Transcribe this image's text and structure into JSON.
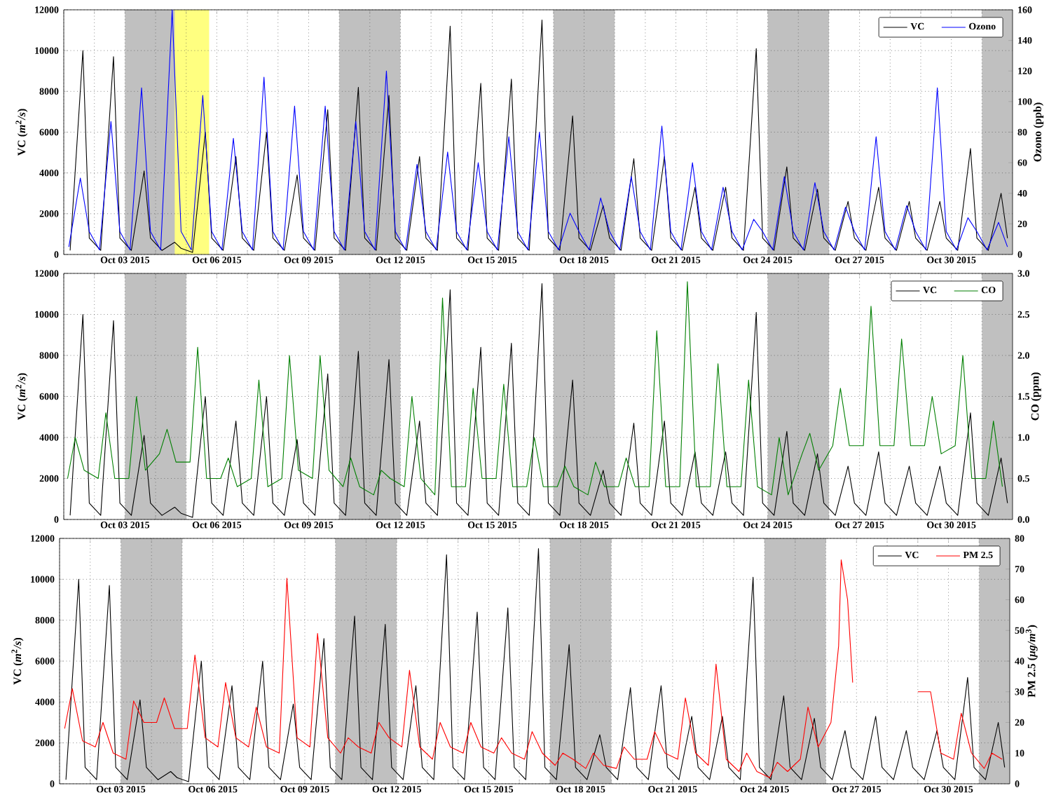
{
  "chart_data": [
    {
      "type": "line",
      "ylabel": "VC (*m*$^{2}$*/s*)",
      "y2label": "Ozono (ppb)",
      "grid": true,
      "legend": "top right",
      "line_style": "solid",
      "xlim": [
        "2015-10-01",
        "2015-11-01"
      ],
      "xticks": [
        {
          "value": "2015-10-01",
          "label": null
        },
        {
          "value": "2015-10-02",
          "label": null
        },
        {
          "value": "2015-10-03",
          "label": "Oct 03 2015"
        },
        {
          "value": "2015-10-04",
          "label": null
        },
        {
          "value": "2015-10-05",
          "label": null
        },
        {
          "value": "2015-10-06",
          "label": "Oct 06 2015"
        },
        {
          "value": "2015-10-07",
          "label": null
        },
        {
          "value": "2015-10-08",
          "label": null
        },
        {
          "value": "2015-10-09",
          "label": "Oct 09 2015"
        },
        {
          "value": "2015-10-10",
          "label": null
        },
        {
          "value": "2015-10-11",
          "label": null
        },
        {
          "value": "2015-10-12",
          "label": "Oct 12 2015"
        },
        {
          "value": "2015-10-13",
          "label": null
        },
        {
          "value": "2015-10-14",
          "label": null
        },
        {
          "value": "2015-10-15",
          "label": "Oct 15 2015"
        },
        {
          "value": "2015-10-16",
          "label": null
        },
        {
          "value": "2015-10-17",
          "label": null
        },
        {
          "value": "2015-10-18",
          "label": "Oct 18 2015"
        },
        {
          "value": "2015-10-19",
          "label": null
        },
        {
          "value": "2015-10-20",
          "label": null
        },
        {
          "value": "2015-10-21",
          "label": "Oct 21 2015"
        },
        {
          "value": "2015-10-22",
          "label": null
        },
        {
          "value": "2015-10-23",
          "label": null
        },
        {
          "value": "2015-10-24",
          "label": "Oct 24 2015"
        },
        {
          "value": "2015-10-25",
          "label": null
        },
        {
          "value": "2015-10-26",
          "label": null
        },
        {
          "value": "2015-10-27",
          "label": "Oct 27 2015"
        },
        {
          "value": "2015-10-28",
          "label": null
        },
        {
          "value": "2015-10-29",
          "label": null
        },
        {
          "value": "2015-10-30",
          "label": "Oct 30 2015"
        },
        {
          "value": "2015-10-31",
          "label": null
        }
      ],
      "ylim": [
        0,
        12000
      ],
      "yticks": [
        0,
        2000,
        4000,
        6000,
        8000,
        10000,
        12000
      ],
      "y2lim": [
        0,
        160
      ],
      "y2ticks": [
        0,
        20,
        40,
        60,
        80,
        100,
        120,
        140,
        160
      ],
      "bands": [
        {
          "axis": "x",
          "from": "2015-10-03",
          "to": "2015-10-05",
          "color": "#c0c0c0"
        },
        {
          "axis": "x",
          "from": "2015-10-10",
          "to": "2015-10-12",
          "color": "#c0c0c0"
        },
        {
          "axis": "x",
          "from": "2015-10-17",
          "to": "2015-10-19",
          "color": "#c0c0c0"
        },
        {
          "axis": "x",
          "from": "2015-10-24",
          "to": "2015-10-26",
          "color": "#c0c0c0"
        },
        {
          "axis": "x",
          "from": "2015-10-31",
          "to": "2015-11-01",
          "color": "#c0c0c0"
        },
        {
          "axis": "x",
          "from": "2015-10-04T15:00",
          "to": "2015-10-05T18:00",
          "color": "#ffff80"
        }
      ],
      "series": [
        {
          "name": "VC",
          "color": "#000000",
          "x": [
            "2015-10-01T05:00",
            "2015-10-01T15:00",
            "2015-10-01T20:00",
            "2015-10-02T05:00",
            "2015-10-02T15:00",
            "2015-10-02T20:00",
            "2015-10-03T05:00",
            "2015-10-03T15:00",
            "2015-10-03T20:00",
            "2015-10-04T05:00",
            "2015-10-04T15:00",
            "2015-10-04T20:00",
            "2015-10-05T05:00",
            "2015-10-05T15:00",
            "2015-10-05T20:00",
            "2015-10-06T05:00",
            "2015-10-06T15:00",
            "2015-10-06T20:00",
            "2015-10-07T05:00",
            "2015-10-07T15:00",
            "2015-10-07T20:00",
            "2015-10-08T05:00",
            "2015-10-08T15:00",
            "2015-10-08T20:00",
            "2015-10-09T05:00",
            "2015-10-09T15:00",
            "2015-10-09T20:00",
            "2015-10-10T05:00",
            "2015-10-10T15:00",
            "2015-10-10T20:00",
            "2015-10-11T05:00",
            "2015-10-11T15:00",
            "2015-10-11T20:00",
            "2015-10-12T05:00",
            "2015-10-12T15:00",
            "2015-10-12T20:00",
            "2015-10-13T05:00",
            "2015-10-13T15:00",
            "2015-10-13T20:00",
            "2015-10-14T05:00",
            "2015-10-14T15:00",
            "2015-10-14T20:00",
            "2015-10-15T05:00",
            "2015-10-15T15:00",
            "2015-10-15T20:00",
            "2015-10-16T05:00",
            "2015-10-16T15:00",
            "2015-10-16T20:00",
            "2015-10-17T05:00",
            "2015-10-17T15:00",
            "2015-10-17T20:00",
            "2015-10-18T05:00",
            "2015-10-18T15:00",
            "2015-10-18T20:00",
            "2015-10-19T05:00",
            "2015-10-19T15:00",
            "2015-10-19T20:00",
            "2015-10-20T05:00",
            "2015-10-20T15:00",
            "2015-10-20T20:00",
            "2015-10-21T05:00",
            "2015-10-21T15:00",
            "2015-10-21T20:00",
            "2015-10-22T05:00",
            "2015-10-22T15:00",
            "2015-10-22T20:00",
            "2015-10-23T05:00",
            "2015-10-23T15:00",
            "2015-10-23T20:00",
            "2015-10-24T05:00",
            "2015-10-24T15:00",
            "2015-10-24T20:00",
            "2015-10-25T05:00",
            "2015-10-25T15:00",
            "2015-10-25T20:00",
            "2015-10-26T05:00",
            "2015-10-26T15:00",
            "2015-10-26T20:00",
            "2015-10-27T05:00",
            "2015-10-27T15:00",
            "2015-10-27T20:00",
            "2015-10-28T05:00",
            "2015-10-28T15:00",
            "2015-10-28T20:00",
            "2015-10-29T05:00",
            "2015-10-29T15:00",
            "2015-10-29T20:00",
            "2015-10-30T05:00",
            "2015-10-30T15:00",
            "2015-10-30T20:00",
            "2015-10-31T05:00",
            "2015-10-31T15:00",
            "2015-10-31T20:00"
          ],
          "values": [
            200,
            10000,
            800,
            200,
            9700,
            800,
            200,
            4100,
            800,
            200,
            600,
            300,
            100,
            6000,
            800,
            200,
            4800,
            800,
            200,
            6000,
            800,
            200,
            3900,
            800,
            200,
            7100,
            800,
            200,
            8200,
            800,
            200,
            7800,
            800,
            200,
            4800,
            800,
            200,
            11200,
            800,
            200,
            8400,
            800,
            200,
            8600,
            800,
            200,
            11500,
            800,
            200,
            6800,
            800,
            200,
            2400,
            800,
            200,
            4700,
            800,
            200,
            4800,
            800,
            200,
            3300,
            800,
            200,
            3300,
            800,
            200,
            10100,
            800,
            200,
            4300,
            800,
            200,
            3200,
            800,
            200,
            2600,
            800,
            200,
            3300,
            800,
            200,
            2600,
            800,
            200,
            2600,
            800,
            200,
            5200,
            800,
            200,
            3000,
            800
          ]
        },
        {
          "name": "Ozono",
          "color": "#0000ff",
          "axis": "y2",
          "x": [
            "2015-10-01T04:00",
            "2015-10-01T13:00",
            "2015-10-01T20:00",
            "2015-10-02T04:00",
            "2015-10-02T13:00",
            "2015-10-02T20:00",
            "2015-10-03T04:00",
            "2015-10-03T13:00",
            "2015-10-03T20:00",
            "2015-10-04T04:00",
            "2015-10-04T13:00",
            "2015-10-04T20:00",
            "2015-10-05T04:00",
            "2015-10-05T13:00",
            "2015-10-05T20:00",
            "2015-10-06T04:00",
            "2015-10-06T13:00",
            "2015-10-06T20:00",
            "2015-10-07T04:00",
            "2015-10-07T13:00",
            "2015-10-07T20:00",
            "2015-10-08T04:00",
            "2015-10-08T13:00",
            "2015-10-08T20:00",
            "2015-10-09T04:00",
            "2015-10-09T13:00",
            "2015-10-09T20:00",
            "2015-10-10T04:00",
            "2015-10-10T13:00",
            "2015-10-10T20:00",
            "2015-10-11T04:00",
            "2015-10-11T13:00",
            "2015-10-11T20:00",
            "2015-10-12T04:00",
            "2015-10-12T13:00",
            "2015-10-12T20:00",
            "2015-10-13T04:00",
            "2015-10-13T13:00",
            "2015-10-13T20:00",
            "2015-10-14T04:00",
            "2015-10-14T13:00",
            "2015-10-14T20:00",
            "2015-10-15T04:00",
            "2015-10-15T13:00",
            "2015-10-15T20:00",
            "2015-10-16T04:00",
            "2015-10-16T13:00",
            "2015-10-16T20:00",
            "2015-10-17T04:00",
            "2015-10-17T13:00",
            "2015-10-17T20:00",
            "2015-10-18T04:00",
            "2015-10-18T13:00",
            "2015-10-18T20:00",
            "2015-10-19T04:00",
            "2015-10-19T13:00",
            "2015-10-19T20:00",
            "2015-10-20T04:00",
            "2015-10-20T13:00",
            "2015-10-20T20:00",
            "2015-10-21T04:00",
            "2015-10-21T13:00",
            "2015-10-21T20:00",
            "2015-10-22T04:00",
            "2015-10-22T13:00",
            "2015-10-22T20:00",
            "2015-10-23T04:00",
            "2015-10-23T13:00",
            "2015-10-23T20:00",
            "2015-10-24T04:00",
            "2015-10-24T13:00",
            "2015-10-24T20:00",
            "2015-10-25T04:00",
            "2015-10-25T13:00",
            "2015-10-25T20:00",
            "2015-10-26T04:00",
            "2015-10-26T13:00",
            "2015-10-26T20:00",
            "2015-10-27T04:00",
            "2015-10-27T13:00",
            "2015-10-27T20:00",
            "2015-10-28T04:00",
            "2015-10-28T13:00",
            "2015-10-28T20:00",
            "2015-10-29T04:00",
            "2015-10-29T13:00",
            "2015-10-29T20:00",
            "2015-10-30T04:00",
            "2015-10-30T13:00",
            "2015-10-30T20:00",
            "2015-10-31T04:00",
            "2015-10-31T13:00",
            "2015-10-31T20:00"
          ],
          "values": [
            5,
            50,
            15,
            3,
            87,
            15,
            3,
            109,
            15,
            3,
            160,
            15,
            3,
            104,
            15,
            3,
            76,
            15,
            3,
            116,
            15,
            3,
            97,
            15,
            3,
            97,
            15,
            3,
            87,
            15,
            3,
            120,
            15,
            3,
            59,
            15,
            3,
            67,
            15,
            3,
            60,
            15,
            3,
            77,
            15,
            3,
            80,
            15,
            3,
            27,
            15,
            3,
            37,
            15,
            3,
            51,
            15,
            3,
            84,
            15,
            3,
            60,
            15,
            3,
            44,
            15,
            3,
            23,
            15,
            3,
            51,
            15,
            3,
            47,
            15,
            3,
            31,
            15,
            3,
            77,
            15,
            3,
            32,
            15,
            3,
            109,
            15,
            3,
            24,
            15,
            3,
            21,
            5
          ]
        }
      ]
    },
    {
      "type": "line",
      "ylabel": "VC (*m*$^{2}$*/s*)",
      "y2label": "CO (ppm)",
      "grid": true,
      "legend": "top right",
      "line_style": "solid",
      "xlim": [
        "2015-10-01",
        "2015-11-01"
      ],
      "xticks": [
        {
          "value": "2015-10-01",
          "label": null
        },
        {
          "value": "2015-10-02",
          "label": null
        },
        {
          "value": "2015-10-03",
          "label": "Oct 03 2015"
        },
        {
          "value": "2015-10-04",
          "label": null
        },
        {
          "value": "2015-10-05",
          "label": null
        },
        {
          "value": "2015-10-06",
          "label": "Oct 06 2015"
        },
        {
          "value": "2015-10-07",
          "label": null
        },
        {
          "value": "2015-10-08",
          "label": null
        },
        {
          "value": "2015-10-09",
          "label": "Oct 09 2015"
        },
        {
          "value": "2015-10-10",
          "label": null
        },
        {
          "value": "2015-10-11",
          "label": null
        },
        {
          "value": "2015-10-12",
          "label": "Oct 12 2015"
        },
        {
          "value": "2015-10-13",
          "label": null
        },
        {
          "value": "2015-10-14",
          "label": null
        },
        {
          "value": "2015-10-15",
          "label": "Oct 15 2015"
        },
        {
          "value": "2015-10-16",
          "label": null
        },
        {
          "value": "2015-10-17",
          "label": null
        },
        {
          "value": "2015-10-18",
          "label": "Oct 18 2015"
        },
        {
          "value": "2015-10-19",
          "label": null
        },
        {
          "value": "2015-10-20",
          "label": null
        },
        {
          "value": "2015-10-21",
          "label": "Oct 21 2015"
        },
        {
          "value": "2015-10-22",
          "label": null
        },
        {
          "value": "2015-10-23",
          "label": null
        },
        {
          "value": "2015-10-24",
          "label": "Oct 24 2015"
        },
        {
          "value": "2015-10-25",
          "label": null
        },
        {
          "value": "2015-10-26",
          "label": null
        },
        {
          "value": "2015-10-27",
          "label": "Oct 27 2015"
        },
        {
          "value": "2015-10-28",
          "label": null
        },
        {
          "value": "2015-10-29",
          "label": null
        },
        {
          "value": "2015-10-30",
          "label": "Oct 30 2015"
        },
        {
          "value": "2015-10-31",
          "label": null
        }
      ],
      "ylim": [
        0,
        12000
      ],
      "yticks": [
        0,
        2000,
        4000,
        6000,
        8000,
        10000,
        12000
      ],
      "y2lim": [
        0,
        3
      ],
      "y2ticks": [
        {
          "value": 0,
          "label": "0.0"
        },
        0.5,
        {
          "value": 1,
          "label": "1.0"
        },
        1.5,
        {
          "value": 2,
          "label": "2.0"
        },
        2.5,
        {
          "value": 3,
          "label": "3.0"
        }
      ],
      "bands": [
        {
          "axis": "x",
          "from": "2015-10-03",
          "to": "2015-10-05",
          "color": "#c0c0c0"
        },
        {
          "axis": "x",
          "from": "2015-10-10",
          "to": "2015-10-12",
          "color": "#c0c0c0"
        },
        {
          "axis": "x",
          "from": "2015-10-17",
          "to": "2015-10-19",
          "color": "#c0c0c0"
        },
        {
          "axis": "x",
          "from": "2015-10-24",
          "to": "2015-10-26",
          "color": "#c0c0c0"
        },
        {
          "axis": "x",
          "from": "2015-10-31",
          "to": "2015-11-01",
          "color": "#c0c0c0"
        }
      ],
      "series": [
        {
          "name": "VC",
          "color": "#000000",
          "x": [
            "2015-10-01T05:00",
            "2015-10-01T15:00",
            "2015-10-01T20:00",
            "2015-10-02T05:00",
            "2015-10-02T15:00",
            "2015-10-02T20:00",
            "2015-10-03T05:00",
            "2015-10-03T15:00",
            "2015-10-03T20:00",
            "2015-10-04T05:00",
            "2015-10-04T15:00",
            "2015-10-04T20:00",
            "2015-10-05T05:00",
            "2015-10-05T15:00",
            "2015-10-05T20:00",
            "2015-10-06T05:00",
            "2015-10-06T15:00",
            "2015-10-06T20:00",
            "2015-10-07T05:00",
            "2015-10-07T15:00",
            "2015-10-07T20:00",
            "2015-10-08T05:00",
            "2015-10-08T15:00",
            "2015-10-08T20:00",
            "2015-10-09T05:00",
            "2015-10-09T15:00",
            "2015-10-09T20:00",
            "2015-10-10T05:00",
            "2015-10-10T15:00",
            "2015-10-10T20:00",
            "2015-10-11T05:00",
            "2015-10-11T15:00",
            "2015-10-11T20:00",
            "2015-10-12T05:00",
            "2015-10-12T15:00",
            "2015-10-12T20:00",
            "2015-10-13T05:00",
            "2015-10-13T15:00",
            "2015-10-13T20:00",
            "2015-10-14T05:00",
            "2015-10-14T15:00",
            "2015-10-14T20:00",
            "2015-10-15T05:00",
            "2015-10-15T15:00",
            "2015-10-15T20:00",
            "2015-10-16T05:00",
            "2015-10-16T15:00",
            "2015-10-16T20:00",
            "2015-10-17T05:00",
            "2015-10-17T15:00",
            "2015-10-17T20:00",
            "2015-10-18T05:00",
            "2015-10-18T15:00",
            "2015-10-18T20:00",
            "2015-10-19T05:00",
            "2015-10-19T15:00",
            "2015-10-19T20:00",
            "2015-10-20T05:00",
            "2015-10-20T15:00",
            "2015-10-20T20:00",
            "2015-10-21T05:00",
            "2015-10-21T15:00",
            "2015-10-21T20:00",
            "2015-10-22T05:00",
            "2015-10-22T15:00",
            "2015-10-22T20:00",
            "2015-10-23T05:00",
            "2015-10-23T15:00",
            "2015-10-23T20:00",
            "2015-10-24T05:00",
            "2015-10-24T15:00",
            "2015-10-24T20:00",
            "2015-10-25T05:00",
            "2015-10-25T15:00",
            "2015-10-25T20:00",
            "2015-10-26T05:00",
            "2015-10-26T15:00",
            "2015-10-26T20:00",
            "2015-10-27T05:00",
            "2015-10-27T15:00",
            "2015-10-27T20:00",
            "2015-10-28T05:00",
            "2015-10-28T15:00",
            "2015-10-28T20:00",
            "2015-10-29T05:00",
            "2015-10-29T15:00",
            "2015-10-29T20:00",
            "2015-10-30T05:00",
            "2015-10-30T15:00",
            "2015-10-30T20:00",
            "2015-10-31T05:00",
            "2015-10-31T15:00",
            "2015-10-31T20:00"
          ],
          "values": [
            200,
            10000,
            800,
            200,
            9700,
            800,
            200,
            4100,
            800,
            200,
            600,
            300,
            100,
            6000,
            800,
            200,
            4800,
            800,
            200,
            6000,
            800,
            200,
            3900,
            800,
            200,
            7100,
            800,
            200,
            8200,
            800,
            200,
            7800,
            800,
            200,
            4800,
            800,
            200,
            11200,
            800,
            200,
            8400,
            800,
            200,
            8600,
            800,
            200,
            11500,
            800,
            200,
            6800,
            800,
            200,
            2400,
            800,
            200,
            4700,
            800,
            200,
            4800,
            800,
            200,
            3300,
            800,
            200,
            3300,
            800,
            200,
            10100,
            800,
            200,
            4300,
            800,
            200,
            3200,
            800,
            200,
            2600,
            800,
            200,
            3300,
            800,
            200,
            2600,
            800,
            200,
            2600,
            800,
            200,
            5200,
            800,
            200,
            3000,
            800
          ]
        },
        {
          "name": "CO",
          "color": "#007f00",
          "axis": "y2",
          "x": [
            "2015-10-01T03:00",
            "2015-10-01T09:00",
            "2015-10-01T16:00",
            "2015-10-02T03:00",
            "2015-10-02T09:00",
            "2015-10-02T16:00",
            "2015-10-03T03:00",
            "2015-10-03T09:00",
            "2015-10-03T16:00",
            "2015-10-04T03:00",
            "2015-10-04T09:00",
            "2015-10-04T16:00",
            "2015-10-05T03:00",
            "2015-10-05T09:00",
            "2015-10-05T16:00",
            "2015-10-06T03:00",
            "2015-10-06T09:00",
            "2015-10-06T16:00",
            "2015-10-07T03:00",
            "2015-10-07T09:00",
            "2015-10-07T16:00",
            "2015-10-08T03:00",
            "2015-10-08T09:00",
            "2015-10-08T16:00",
            "2015-10-09T03:00",
            "2015-10-09T09:00",
            "2015-10-09T16:00",
            "2015-10-10T03:00",
            "2015-10-10T09:00",
            "2015-10-10T16:00",
            "2015-10-11T03:00",
            "2015-10-11T09:00",
            "2015-10-11T16:00",
            "2015-10-12T03:00",
            "2015-10-12T09:00",
            "2015-10-12T16:00",
            "2015-10-13T03:00",
            "2015-10-13T09:00",
            "2015-10-13T16:00",
            "2015-10-14T03:00",
            "2015-10-14T09:00",
            "2015-10-14T16:00",
            "2015-10-15T03:00",
            "2015-10-15T09:00",
            "2015-10-15T16:00",
            "2015-10-16T03:00",
            "2015-10-16T09:00",
            "2015-10-16T16:00",
            "2015-10-17T03:00",
            "2015-10-17T09:00",
            "2015-10-17T16:00",
            "2015-10-18T03:00",
            "2015-10-18T09:00",
            "2015-10-18T16:00",
            "2015-10-19T03:00",
            "2015-10-19T09:00",
            "2015-10-19T16:00",
            "2015-10-20T03:00",
            "2015-10-20T09:00",
            "2015-10-20T16:00",
            "2015-10-21T03:00",
            "2015-10-21T09:00",
            "2015-10-21T16:00",
            "2015-10-22T03:00",
            "2015-10-22T09:00",
            "2015-10-22T16:00",
            "2015-10-23T03:00",
            "2015-10-23T09:00",
            "2015-10-23T16:00",
            "2015-10-24T03:00",
            "2015-10-24T09:00",
            "2015-10-24T16:00",
            "2015-10-25T03:00",
            "2015-10-25T09:00",
            "2015-10-25T16:00",
            "2015-10-26T03:00",
            "2015-10-26T09:00",
            "2015-10-26T16:00",
            "2015-10-27T03:00",
            "2015-10-27T09:00",
            "2015-10-27T16:00",
            "2015-10-28T03:00",
            "2015-10-28T09:00",
            "2015-10-28T16:00",
            "2015-10-29T03:00",
            "2015-10-29T09:00",
            "2015-10-29T16:00",
            "2015-10-30T03:00",
            "2015-10-30T09:00",
            "2015-10-30T16:00",
            "2015-10-31T03:00",
            "2015-10-31T09:00",
            "2015-10-31T16:00"
          ],
          "values": [
            0.5,
            1.0,
            0.6,
            0.5,
            1.3,
            0.5,
            0.5,
            1.5,
            0.6,
            0.8,
            1.1,
            0.7,
            0.7,
            2.1,
            0.5,
            0.5,
            0.75,
            0.4,
            0.5,
            1.7,
            0.4,
            0.5,
            2.0,
            0.6,
            0.5,
            2.0,
            0.6,
            0.4,
            0.75,
            0.4,
            0.3,
            0.6,
            0.5,
            0.4,
            1.5,
            0.5,
            0.3,
            2.7,
            0.4,
            0.4,
            1.6,
            0.5,
            0.5,
            1.65,
            0.4,
            0.4,
            1.0,
            0.4,
            0.4,
            0.65,
            0.4,
            0.3,
            0.7,
            0.4,
            0.4,
            0.75,
            0.4,
            0.4,
            2.3,
            0.4,
            0.4,
            2.9,
            0.4,
            0.4,
            1.9,
            0.4,
            0.4,
            1.7,
            0.4,
            0.3,
            1.0,
            0.3,
            0.8,
            1.05,
            0.6,
            0.9,
            1.6,
            0.9,
            0.9,
            2.6,
            0.9,
            0.9,
            2.2,
            0.9,
            0.9,
            1.5,
            0.8,
            0.9,
            2.0,
            0.5,
            0.5,
            1.2,
            0.4
          ]
        }
      ]
    },
    {
      "type": "line",
      "ylabel": "VC (*m*$^{2}$*/s*)",
      "y2label": "PM 2.5 (*μg/m*$^{3}$)",
      "grid": true,
      "legend": "top right",
      "line_style": "solid",
      "xlim": [
        "2015-10-01",
        "2015-11-01"
      ],
      "xticks": [
        {
          "value": "2015-10-01",
          "label": null
        },
        {
          "value": "2015-10-02",
          "label": null
        },
        {
          "value": "2015-10-03",
          "label": "Oct 03 2015"
        },
        {
          "value": "2015-10-04",
          "label": null
        },
        {
          "value": "2015-10-05",
          "label": null
        },
        {
          "value": "2015-10-06",
          "label": "Oct 06 2015"
        },
        {
          "value": "2015-10-07",
          "label": null
        },
        {
          "value": "2015-10-08",
          "label": null
        },
        {
          "value": "2015-10-09",
          "label": "Oct 09 2015"
        },
        {
          "value": "2015-10-10",
          "label": null
        },
        {
          "value": "2015-10-11",
          "label": null
        },
        {
          "value": "2015-10-12",
          "label": "Oct 12 2015"
        },
        {
          "value": "2015-10-13",
          "label": null
        },
        {
          "value": "2015-10-14",
          "label": null
        },
        {
          "value": "2015-10-15",
          "label": "Oct 15 2015"
        },
        {
          "value": "2015-10-16",
          "label": null
        },
        {
          "value": "2015-10-17",
          "label": null
        },
        {
          "value": "2015-10-18",
          "label": "Oct 18 2015"
        },
        {
          "value": "2015-10-19",
          "label": null
        },
        {
          "value": "2015-10-20",
          "label": null
        },
        {
          "value": "2015-10-21",
          "label": "Oct 21 2015"
        },
        {
          "value": "2015-10-22",
          "label": null
        },
        {
          "value": "2015-10-23",
          "label": null
        },
        {
          "value": "2015-10-24",
          "label": "Oct 24 2015"
        },
        {
          "value": "2015-10-25",
          "label": null
        },
        {
          "value": "2015-10-26",
          "label": null
        },
        {
          "value": "2015-10-27",
          "label": "Oct 27 2015"
        },
        {
          "value": "2015-10-28",
          "label": null
        },
        {
          "value": "2015-10-29",
          "label": null
        },
        {
          "value": "2015-10-30",
          "label": "Oct 30 2015"
        },
        {
          "value": "2015-10-31",
          "label": null
        }
      ],
      "ylim": [
        0,
        12000
      ],
      "yticks": [
        0,
        2000,
        4000,
        6000,
        8000,
        10000,
        12000
      ],
      "y2lim": [
        0,
        80
      ],
      "y2ticks": [
        0,
        10,
        20,
        30,
        40,
        50,
        60,
        70,
        80
      ],
      "bands": [
        {
          "axis": "x",
          "from": "2015-10-03",
          "to": "2015-10-05",
          "color": "#c0c0c0"
        },
        {
          "axis": "x",
          "from": "2015-10-10",
          "to": "2015-10-12",
          "color": "#c0c0c0"
        },
        {
          "axis": "x",
          "from": "2015-10-17",
          "to": "2015-10-19",
          "color": "#c0c0c0"
        },
        {
          "axis": "x",
          "from": "2015-10-24",
          "to": "2015-10-26",
          "color": "#c0c0c0"
        },
        {
          "axis": "x",
          "from": "2015-10-31",
          "to": "2015-11-01",
          "color": "#c0c0c0"
        }
      ],
      "series": [
        {
          "name": "VC",
          "color": "#000000",
          "x": [
            "2015-10-01T05:00",
            "2015-10-01T15:00",
            "2015-10-01T20:00",
            "2015-10-02T05:00",
            "2015-10-02T15:00",
            "2015-10-02T20:00",
            "2015-10-03T05:00",
            "2015-10-03T15:00",
            "2015-10-03T20:00",
            "2015-10-04T05:00",
            "2015-10-04T15:00",
            "2015-10-04T20:00",
            "2015-10-05T05:00",
            "2015-10-05T15:00",
            "2015-10-05T20:00",
            "2015-10-06T05:00",
            "2015-10-06T15:00",
            "2015-10-06T20:00",
            "2015-10-07T05:00",
            "2015-10-07T15:00",
            "2015-10-07T20:00",
            "2015-10-08T05:00",
            "2015-10-08T15:00",
            "2015-10-08T20:00",
            "2015-10-09T05:00",
            "2015-10-09T15:00",
            "2015-10-09T20:00",
            "2015-10-10T05:00",
            "2015-10-10T15:00",
            "2015-10-10T20:00",
            "2015-10-11T05:00",
            "2015-10-11T15:00",
            "2015-10-11T20:00",
            "2015-10-12T05:00",
            "2015-10-12T15:00",
            "2015-10-12T20:00",
            "2015-10-13T05:00",
            "2015-10-13T15:00",
            "2015-10-13T20:00",
            "2015-10-14T05:00",
            "2015-10-14T15:00",
            "2015-10-14T20:00",
            "2015-10-15T05:00",
            "2015-10-15T15:00",
            "2015-10-15T20:00",
            "2015-10-16T05:00",
            "2015-10-16T15:00",
            "2015-10-16T20:00",
            "2015-10-17T05:00",
            "2015-10-17T15:00",
            "2015-10-17T20:00",
            "2015-10-18T05:00",
            "2015-10-18T15:00",
            "2015-10-18T20:00",
            "2015-10-19T05:00",
            "2015-10-19T15:00",
            "2015-10-19T20:00",
            "2015-10-20T05:00",
            "2015-10-20T15:00",
            "2015-10-20T20:00",
            "2015-10-21T05:00",
            "2015-10-21T15:00",
            "2015-10-21T20:00",
            "2015-10-22T05:00",
            "2015-10-22T15:00",
            "2015-10-22T20:00",
            "2015-10-23T05:00",
            "2015-10-23T15:00",
            "2015-10-23T20:00",
            "2015-10-24T05:00",
            "2015-10-24T15:00",
            "2015-10-24T20:00",
            "2015-10-25T05:00",
            "2015-10-25T15:00",
            "2015-10-25T20:00",
            "2015-10-26T05:00",
            "2015-10-26T15:00",
            "2015-10-26T20:00",
            "2015-10-27T05:00",
            "2015-10-27T15:00",
            "2015-10-27T20:00",
            "2015-10-28T05:00",
            "2015-10-28T15:00",
            "2015-10-28T20:00",
            "2015-10-29T05:00",
            "2015-10-29T15:00",
            "2015-10-29T20:00",
            "2015-10-30T05:00",
            "2015-10-30T15:00",
            "2015-10-30T20:00",
            "2015-10-31T05:00",
            "2015-10-31T15:00",
            "2015-10-31T20:00"
          ],
          "values": [
            200,
            10000,
            800,
            200,
            9700,
            800,
            200,
            4100,
            800,
            200,
            600,
            300,
            100,
            6000,
            800,
            200,
            4800,
            800,
            200,
            6000,
            800,
            200,
            3900,
            800,
            200,
            7100,
            800,
            200,
            8200,
            800,
            200,
            7800,
            800,
            200,
            4800,
            800,
            200,
            11200,
            800,
            200,
            8400,
            800,
            200,
            8600,
            800,
            200,
            11500,
            800,
            200,
            6800,
            800,
            200,
            2400,
            800,
            200,
            4700,
            800,
            200,
            4800,
            800,
            200,
            3300,
            800,
            200,
            3300,
            800,
            200,
            10100,
            800,
            200,
            4300,
            800,
            200,
            3200,
            800,
            200,
            2600,
            800,
            200,
            3300,
            800,
            200,
            2600,
            800,
            200,
            2600,
            800,
            200,
            5200,
            800,
            200,
            3000,
            800
          ]
        },
        {
          "name": "PM 2.5",
          "color": "#ff0000",
          "axis": "y2",
          "x": [
            "2015-10-01T04:00",
            "2015-10-01T10:00",
            "2015-10-01T18:00",
            "2015-10-02T04:00",
            "2015-10-02T10:00",
            "2015-10-02T18:00",
            "2015-10-03T04:00",
            "2015-10-03T10:00",
            "2015-10-03T18:00",
            "2015-10-04T04:00",
            "2015-10-04T10:00",
            "2015-10-04T18:00",
            "2015-10-05T04:00",
            "2015-10-05T10:00",
            "2015-10-05T18:00",
            "2015-10-06T04:00",
            "2015-10-06T10:00",
            "2015-10-06T18:00",
            "2015-10-07T04:00",
            "2015-10-07T10:00",
            "2015-10-07T18:00",
            "2015-10-08T04:00",
            "2015-10-08T10:00",
            "2015-10-08T18:00",
            "2015-10-09T04:00",
            "2015-10-09T10:00",
            "2015-10-09T18:00",
            "2015-10-10T04:00",
            "2015-10-10T10:00",
            "2015-10-10T18:00",
            "2015-10-11T04:00",
            "2015-10-11T10:00",
            "2015-10-11T18:00",
            "2015-10-12T04:00",
            "2015-10-12T10:00",
            "2015-10-12T18:00",
            "2015-10-13T04:00",
            "2015-10-13T10:00",
            "2015-10-13T18:00",
            "2015-10-14T04:00",
            "2015-10-14T10:00",
            "2015-10-14T18:00",
            "2015-10-15T04:00",
            "2015-10-15T10:00",
            "2015-10-15T18:00",
            "2015-10-16T04:00",
            "2015-10-16T10:00",
            "2015-10-16T18:00",
            "2015-10-17T04:00",
            "2015-10-17T10:00",
            "2015-10-17T18:00",
            "2015-10-18T04:00",
            "2015-10-18T10:00",
            "2015-10-18T18:00",
            "2015-10-19T04:00",
            "2015-10-19T10:00",
            "2015-10-19T18:00",
            "2015-10-20T04:00",
            "2015-10-20T10:00",
            "2015-10-20T18:00",
            "2015-10-21T04:00",
            "2015-10-21T10:00",
            "2015-10-21T18:00",
            "2015-10-22T04:00",
            "2015-10-22T10:00",
            "2015-10-22T18:00",
            "2015-10-23T04:00",
            "2015-10-23T10:00",
            "2015-10-23T18:00",
            "2015-10-24T04:00",
            "2015-10-24T10:00",
            "2015-10-24T18:00",
            "2015-10-25T04:00",
            "2015-10-25T10:00",
            "2015-10-25T18:00",
            "2015-10-26T04:00",
            "2015-10-26T10:00",
            "2015-10-26T12:00",
            "2015-10-26T17:00",
            "2015-10-26T21:00",
            "2015-10-27T12:00",
            "2015-10-29T00:00",
            "2015-10-29T10:00",
            "2015-10-29T18:00",
            "2015-10-30T04:00",
            "2015-10-30T10:00",
            "2015-10-30T18:00",
            "2015-10-31T04:00",
            "2015-10-31T10:00",
            "2015-10-31T18:00"
          ],
          "values": [
            18,
            31,
            14,
            12,
            20,
            10,
            8,
            27,
            20,
            20,
            28,
            18,
            18,
            42,
            15,
            12,
            33,
            15,
            12,
            25,
            12,
            10,
            67,
            15,
            12,
            49,
            15,
            10,
            15,
            12,
            10,
            20,
            15,
            12,
            37,
            12,
            8,
            20,
            12,
            10,
            20,
            12,
            10,
            15,
            10,
            8,
            17,
            10,
            6,
            10,
            8,
            5,
            10,
            6,
            5,
            12,
            8,
            8,
            17,
            10,
            8,
            28,
            10,
            6,
            39,
            8,
            4,
            10,
            4,
            2,
            7,
            4,
            8,
            25,
            12,
            20,
            45,
            73,
            60,
            33,
            null,
            30,
            30,
            10,
            8,
            23,
            10,
            5,
            10,
            8
          ]
        }
      ]
    }
  ]
}
